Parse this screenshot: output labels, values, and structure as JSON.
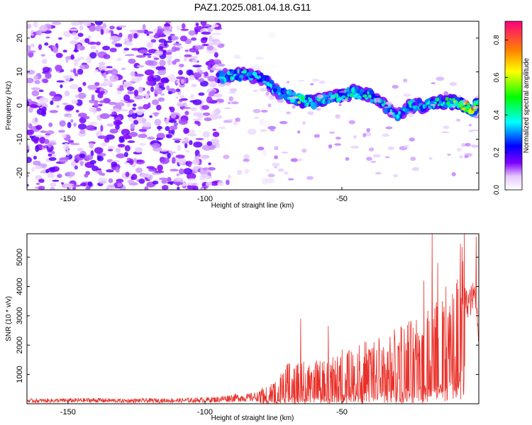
{
  "title": "PAZ1.2025.081.04.18.G11",
  "chart_data": [
    {
      "type": "heatmap",
      "xlabel": "Height of straight line (km)",
      "ylabel": "Frequency (Hz)",
      "xlim": [
        -165,
        0
      ],
      "ylim": [
        -25,
        25
      ],
      "xticks": [
        -150,
        -100,
        -50
      ],
      "yticks": [
        -20,
        -10,
        0,
        10,
        20
      ],
      "colorbar": {
        "label": "Normalized spectral amplitude",
        "range": [
          0.0,
          0.9
        ],
        "ticks": [
          "0.0",
          "0.2",
          "0.4",
          "0.6",
          "0.8"
        ],
        "colors": [
          "#ffffff",
          "#8000ff",
          "#0000ff",
          "#00ffff",
          "#00ff00",
          "#ffff00",
          "#ff8000",
          "#ff0080"
        ]
      },
      "noise_region": {
        "x_range": [
          -165,
          -95
        ],
        "freq_range": [
          -25,
          25
        ],
        "amplitude": 0.15
      },
      "signal_ridge": {
        "x": [
          -95,
          -90,
          -85,
          -80,
          -75,
          -70,
          -65,
          -60,
          -55,
          -50,
          -45,
          -40,
          -35,
          -30,
          -25,
          -20,
          -15,
          -10,
          -5,
          -2,
          0
        ],
        "freq": [
          8,
          9,
          9,
          8.5,
          5,
          3,
          1.5,
          1,
          2,
          3,
          4,
          3,
          0,
          -3,
          0,
          0,
          1,
          1,
          0,
          -1,
          1
        ],
        "amplitude": [
          0.35,
          0.4,
          0.4,
          0.38,
          0.35,
          0.4,
          0.55,
          0.45,
          0.4,
          0.4,
          0.45,
          0.4,
          0.4,
          0.35,
          0.4,
          0.4,
          0.45,
          0.5,
          0.7,
          0.85,
          0.5
        ]
      }
    },
    {
      "type": "line",
      "xlabel": "Height of straight line (km)",
      "ylabel": "SNR (10 * v/v)",
      "xlim": [
        -165,
        0
      ],
      "ylim": [
        0,
        5800
      ],
      "xticks": [
        -150,
        -100,
        -50
      ],
      "yticks": [
        1000,
        2000,
        3000,
        4000,
        5000
      ],
      "color": "#e8312a",
      "series": [
        {
          "x": [
            -165,
            -150,
            -140,
            -130,
            -120,
            -110,
            -100,
            -95,
            -90,
            -85,
            -80,
            -75,
            -70,
            -65,
            -60,
            -55,
            -50,
            -45,
            -40,
            -35,
            -30,
            -25,
            -20,
            -15,
            -10,
            -5,
            -3,
            -1,
            0
          ],
          "y": [
            100,
            110,
            120,
            100,
            110,
            110,
            130,
            150,
            200,
            200,
            250,
            350,
            650,
            700,
            700,
            750,
            900,
            1000,
            1050,
            1100,
            1300,
            1450,
            1600,
            1750,
            1850,
            3400,
            3500,
            3800,
            2300
          ],
          "peaks": [
            [
              -65,
              2900
            ],
            [
              -55,
              2650
            ],
            [
              -20,
              4200
            ],
            [
              -17,
              5800
            ],
            [
              -15,
              4800
            ],
            [
              -12,
              4000
            ],
            [
              -5,
              3950
            ],
            [
              -1,
              5700
            ]
          ]
        }
      ]
    }
  ]
}
